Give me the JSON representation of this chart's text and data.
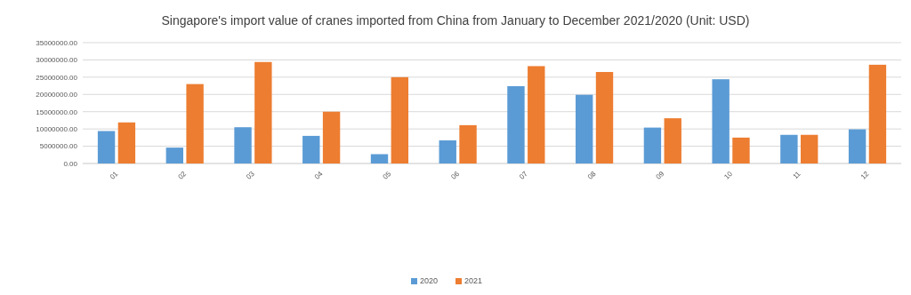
{
  "chart_data": {
    "type": "bar",
    "title": "Singapore's import value of cranes imported from China from January to December 2021/2020 (Unit: USD)",
    "categories": [
      "01",
      "02",
      "03",
      "04",
      "05",
      "06",
      "07",
      "08",
      "09",
      "10",
      "11",
      "12"
    ],
    "series": [
      {
        "name": "2020",
        "color": "#5b9bd5",
        "values": [
          9400000,
          4600000,
          10500000,
          8000000,
          2700000,
          6700000,
          22400000,
          19900000,
          10400000,
          24400000,
          8300000,
          9900000
        ]
      },
      {
        "name": "2021",
        "color": "#ed7d31",
        "values": [
          11900000,
          23000000,
          29400000,
          15000000,
          25000000,
          11100000,
          28200000,
          26500000,
          13100000,
          7500000,
          8300000,
          28600000
        ]
      }
    ],
    "ylim": [
      0,
      35000000
    ],
    "yticks": [
      {
        "value": 0,
        "label": "0.00"
      },
      {
        "value": 5000000,
        "label": "5000000.00"
      },
      {
        "value": 10000000,
        "label": "10000000.00"
      },
      {
        "value": 15000000,
        "label": "15000000.00"
      },
      {
        "value": 20000000,
        "label": "20000000.00"
      },
      {
        "value": 25000000,
        "label": "25000000.00"
      },
      {
        "value": 30000000,
        "label": "30000000.00"
      },
      {
        "value": 35000000,
        "label": "35000000.00"
      }
    ],
    "grid": "y",
    "legend": "bottom"
  }
}
